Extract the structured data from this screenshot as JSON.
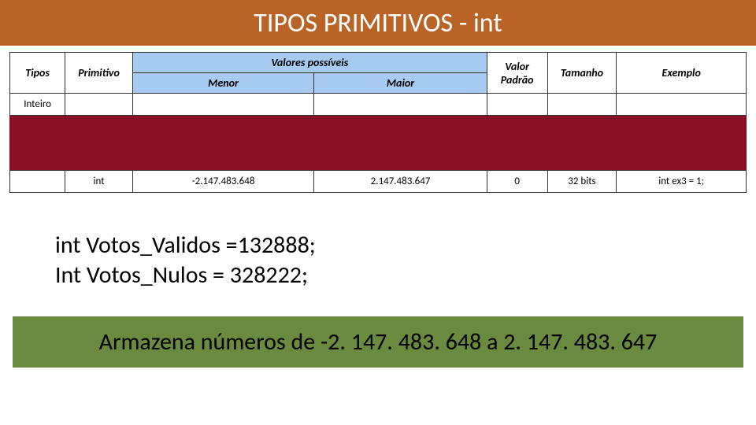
{
  "title": {
    "text": "TIPOS PRIMITIVOS - int",
    "bg": "#b96426",
    "fg": "#ffffff"
  },
  "table": {
    "header_bg": "#a6caf0",
    "merged_header": "Valores possíveis",
    "columns": {
      "tipos": "Tipos",
      "primitivo": "Primitivo",
      "menor": "Menor",
      "maior": "Maior",
      "valor_padrao": "Valor Padrão",
      "tamanho": "Tamanho",
      "exemplo": "Exemplo"
    },
    "category_row": {
      "tipos": "Inteiro"
    },
    "maroon_color": "#8a0f27",
    "int_row": {
      "tipos": "",
      "primitivo": "int",
      "menor": "-2.147.483.648",
      "maior": "2.147.483.647",
      "valor_padrao": "0",
      "tamanho": "32 bits",
      "exemplo": "int ex3 = 1;"
    },
    "col_widths": [
      "64px",
      "78px",
      "210px",
      "200px",
      "70px",
      "80px",
      "150px"
    ]
  },
  "code": {
    "line1": "int Votos_Validos =132888;",
    "line2": "Int Votos_Nulos = 328222;"
  },
  "footer": {
    "text": "Armazena números de -2. 147. 483. 648 a 2. 147. 483. 647",
    "bg": "#6a8a3f",
    "fg": "#000000"
  }
}
